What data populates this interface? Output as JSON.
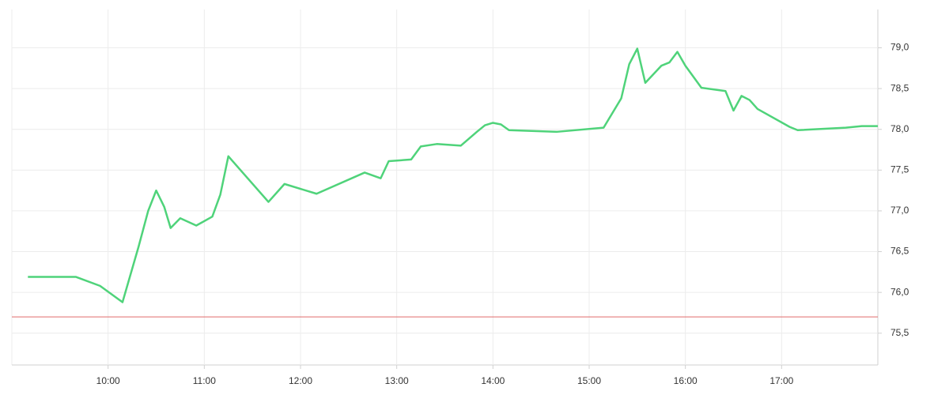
{
  "chart_data": {
    "type": "line",
    "x": [
      "09:10",
      "09:40",
      "09:55",
      "10:09",
      "10:19",
      "10:25",
      "10:30",
      "10:35",
      "10:39",
      "10:45",
      "10:55",
      "11:05",
      "11:10",
      "11:15",
      "11:40",
      "11:50",
      "12:10",
      "12:40",
      "12:50",
      "12:55",
      "13:09",
      "13:15",
      "13:25",
      "13:40",
      "13:50",
      "13:55",
      "14:00",
      "14:05",
      "14:10",
      "14:40",
      "15:09",
      "15:20",
      "15:25",
      "15:30",
      "15:35",
      "15:45",
      "15:50",
      "15:55",
      "16:00",
      "16:10",
      "16:25",
      "16:30",
      "16:35",
      "16:40",
      "16:45",
      "17:05",
      "17:10",
      "17:40",
      "17:50",
      "18:00"
    ],
    "values": [
      76.19,
      76.19,
      76.08,
      75.88,
      76.56,
      77.0,
      77.25,
      77.05,
      76.79,
      76.91,
      76.82,
      76.93,
      77.2,
      77.67,
      77.11,
      77.33,
      77.21,
      77.47,
      77.4,
      77.61,
      77.63,
      77.79,
      77.82,
      77.8,
      77.97,
      78.05,
      78.08,
      78.06,
      77.99,
      77.97,
      78.02,
      78.38,
      78.8,
      78.99,
      78.57,
      78.78,
      78.82,
      78.95,
      78.78,
      78.51,
      78.47,
      78.23,
      78.41,
      78.36,
      78.25,
      78.03,
      77.99,
      78.02,
      78.04,
      78.04
    ],
    "color": "#4fd37a",
    "reference_line": 75.7,
    "reference_color": "#e06a6a",
    "xlim": [
      "09:00",
      "18:00"
    ],
    "xticks": [
      "10:00",
      "11:00",
      "12:00",
      "13:00",
      "14:00",
      "15:00",
      "16:00",
      "17:00"
    ],
    "ylim": [
      75.11,
      79.47
    ],
    "yticks": [
      {
        "value": 75.5,
        "label": "75,5"
      },
      {
        "value": 76,
        "label": "76,0"
      },
      {
        "value": 76.5,
        "label": "76,5"
      },
      {
        "value": 77,
        "label": "77,0"
      },
      {
        "value": 77.5,
        "label": "77,5"
      },
      {
        "value": 78,
        "label": "78,0"
      },
      {
        "value": 78.5,
        "label": "78,5"
      },
      {
        "value": 79,
        "label": "79,0"
      }
    ],
    "grid": true
  }
}
